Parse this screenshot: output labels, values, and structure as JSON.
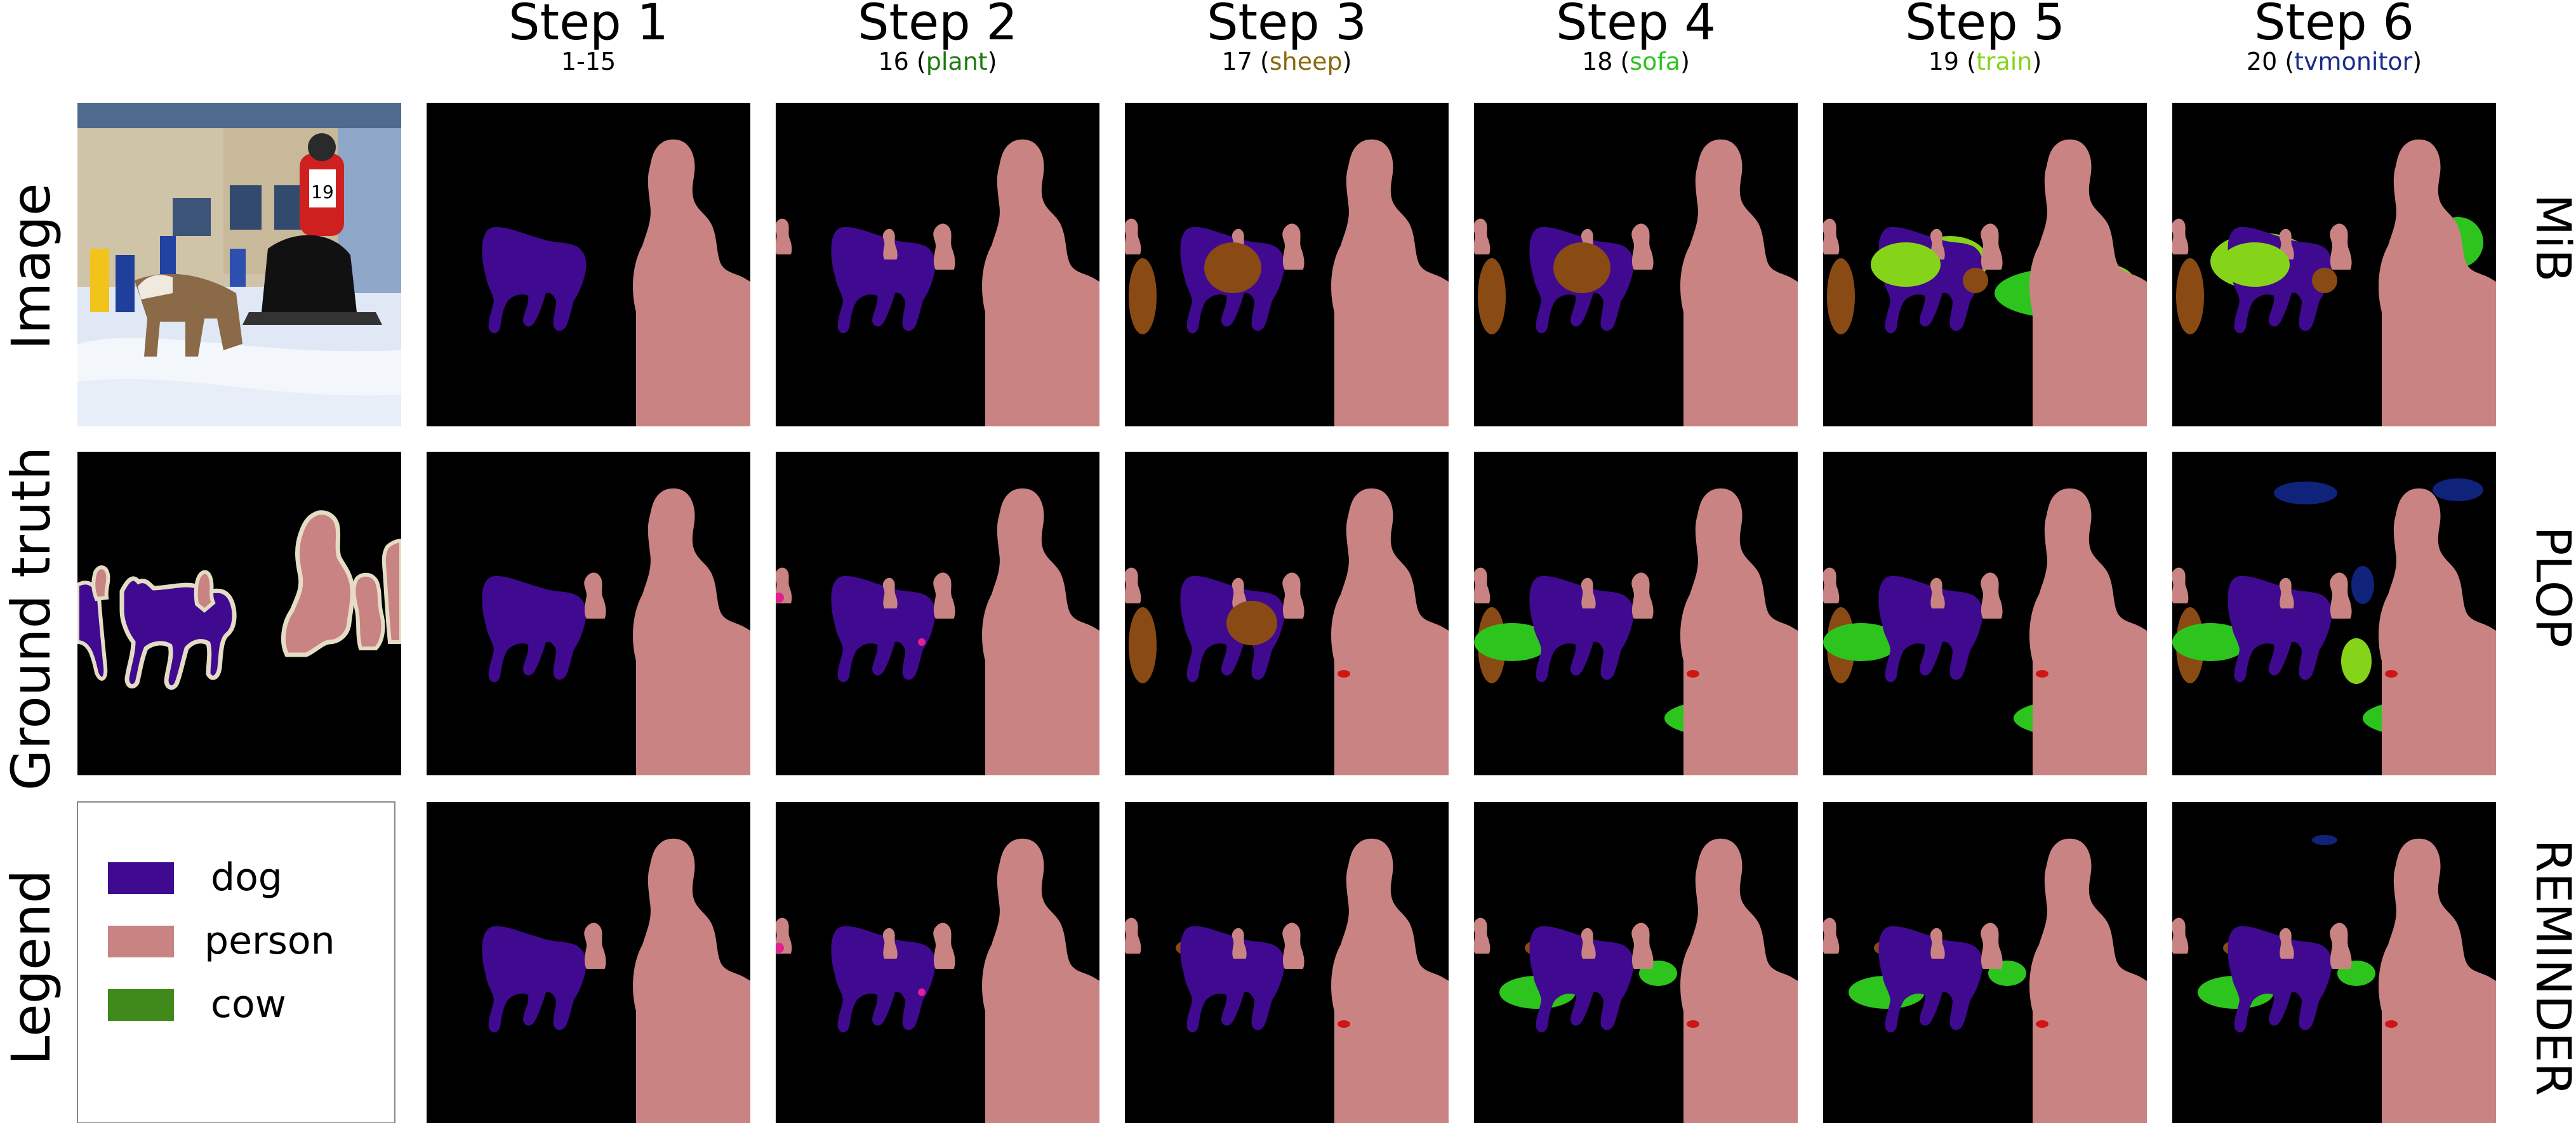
{
  "steps": [
    {
      "title": "Step 1",
      "classes": "1-15",
      "new_class": "",
      "new_class_color": ""
    },
    {
      "title": "Step 2",
      "classes": "16",
      "new_class": "plant",
      "new_class_color": "#1f7a10"
    },
    {
      "title": "Step 3",
      "classes": "17",
      "new_class": "sheep",
      "new_class_color": "#8a6a10"
    },
    {
      "title": "Step 4",
      "classes": "18",
      "new_class": "sofa",
      "new_class_color": "#2ec41e"
    },
    {
      "title": "Step 5",
      "classes": "19",
      "new_class": "train",
      "new_class_color": "#86d41a"
    },
    {
      "title": "Step 6",
      "classes": "20",
      "new_class": "tvmonitor",
      "new_class_color": "#1a2d8a"
    }
  ],
  "rows": {
    "left": [
      "Image",
      "Ground truth",
      "Legend"
    ],
    "right": [
      "MiB",
      "PLOP",
      "REMINDER"
    ]
  },
  "legend": [
    {
      "label": "dog",
      "color": "#3f0a8f"
    },
    {
      "label": "person",
      "color": "#c98383"
    },
    {
      "label": "cow",
      "color": "#3f8a1a"
    }
  ],
  "palette": {
    "dog": "#3f0a8f",
    "person": "#c98383",
    "sheep": "#8a4a14",
    "sofa": "#2ec41e",
    "train": "#86d41a",
    "tvmonitor": "#0f237a",
    "red": "#d01515",
    "magenta": "#e0208f",
    "background": "#000000"
  }
}
